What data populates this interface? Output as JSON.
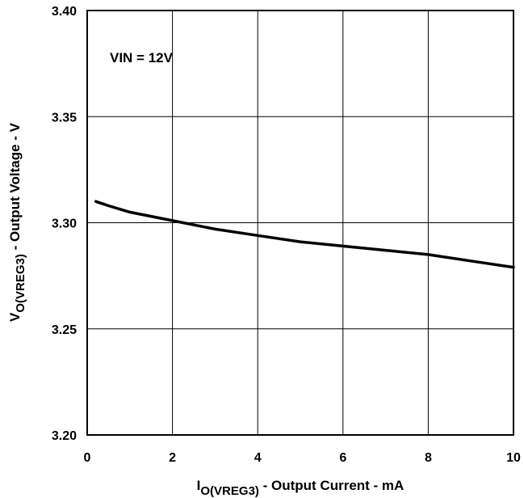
{
  "chart_data": {
    "type": "line",
    "title": "",
    "xlabel": {
      "main": "I",
      "sub": "O(VREG3)",
      "rest": " - Output Current  - mA"
    },
    "ylabel": {
      "main": "V",
      "sub": "O(VREG3)",
      "rest": " - Output Voltage - V"
    },
    "xlim": [
      0,
      10
    ],
    "ylim": [
      3.2,
      3.4
    ],
    "x_ticks": [
      0,
      2,
      4,
      6,
      8,
      10
    ],
    "x_tick_labels": [
      "0",
      "2",
      "4",
      "6",
      "8",
      "10"
    ],
    "y_ticks": [
      3.2,
      3.25,
      3.3,
      3.35,
      3.4
    ],
    "y_tick_labels": [
      "3.20",
      "3.25",
      "3.30",
      "3.35",
      "3.40"
    ],
    "grid": true,
    "annotations": [
      "VIN = 12V"
    ],
    "series": [
      {
        "x": [
          0.2,
          0.5,
          1.0,
          1.5,
          2.0,
          3.0,
          4.0,
          5.0,
          6.0,
          7.0,
          8.0,
          9.0,
          10.0
        ],
        "y": [
          3.31,
          3.308,
          3.305,
          3.303,
          3.301,
          3.297,
          3.294,
          3.291,
          3.289,
          3.287,
          3.285,
          3.282,
          3.279
        ],
        "color": "#000000"
      }
    ]
  }
}
